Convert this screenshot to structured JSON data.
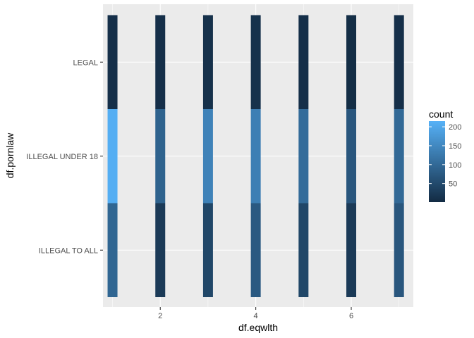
{
  "chart_data": {
    "type": "heatmap",
    "xlabel": "df.eqwlth",
    "ylabel": "df.pornlaw",
    "x_ticks": [
      2,
      4,
      6
    ],
    "xlim": [
      0.8,
      7.3
    ],
    "x_values": [
      1,
      2,
      3,
      4,
      5,
      6,
      7
    ],
    "y_categories": [
      "ILLEGAL TO ALL",
      "ILLEGAL UNDER 18",
      "LEGAL"
    ],
    "cells": [
      {
        "x": 1,
        "y": "LEGAL",
        "count": 8
      },
      {
        "x": 1,
        "y": "ILLEGAL UNDER 18",
        "count": 210
      },
      {
        "x": 1,
        "y": "ILLEGAL TO ALL",
        "count": 95
      },
      {
        "x": 2,
        "y": "LEGAL",
        "count": 8
      },
      {
        "x": 2,
        "y": "ILLEGAL UNDER 18",
        "count": 90
      },
      {
        "x": 2,
        "y": "ILLEGAL TO ALL",
        "count": 25
      },
      {
        "x": 3,
        "y": "LEGAL",
        "count": 10
      },
      {
        "x": 3,
        "y": "ILLEGAL UNDER 18",
        "count": 140
      },
      {
        "x": 3,
        "y": "ILLEGAL TO ALL",
        "count": 45
      },
      {
        "x": 4,
        "y": "LEGAL",
        "count": 12
      },
      {
        "x": 4,
        "y": "ILLEGAL UNDER 18",
        "count": 135
      },
      {
        "x": 4,
        "y": "ILLEGAL TO ALL",
        "count": 75
      },
      {
        "x": 5,
        "y": "LEGAL",
        "count": 8
      },
      {
        "x": 5,
        "y": "ILLEGAL UNDER 18",
        "count": 105
      },
      {
        "x": 5,
        "y": "ILLEGAL TO ALL",
        "count": 45
      },
      {
        "x": 6,
        "y": "LEGAL",
        "count": 5
      },
      {
        "x": 6,
        "y": "ILLEGAL UNDER 18",
        "count": 70
      },
      {
        "x": 6,
        "y": "ILLEGAL TO ALL",
        "count": 25
      },
      {
        "x": 7,
        "y": "LEGAL",
        "count": 8
      },
      {
        "x": 7,
        "y": "ILLEGAL UNDER 18",
        "count": 100
      },
      {
        "x": 7,
        "y": "ILLEGAL TO ALL",
        "count": 70
      }
    ],
    "legend": {
      "title": "count",
      "ticks": [
        50,
        100,
        150,
        200
      ],
      "range": [
        1,
        215
      ],
      "low_color": "#132B43",
      "high_color": "#56B1F7",
      "placement": "right"
    },
    "grid": true,
    "panel_background": "#EBEBEB",
    "grid_color": "#FFFFFF"
  }
}
